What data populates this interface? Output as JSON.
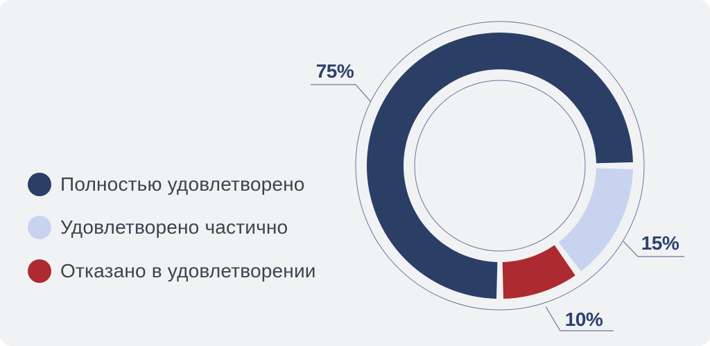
{
  "card": {
    "background": "#f1f2f3"
  },
  "chart_data": {
    "type": "pie",
    "subtype": "donut",
    "title": "",
    "legend_position": "left",
    "start_angle_deg": 180,
    "direction": "clockwise",
    "gap_deg": 3,
    "segments": [
      {
        "label": "Полностью удовлетворено",
        "value": 75,
        "display": "75%",
        "color": "#2b3e66"
      },
      {
        "label": "Удовлетворено частично",
        "value": 15,
        "display": "15%",
        "color": "#c8d4ef"
      },
      {
        "label": "Отказано в удовлетворении",
        "value": 10,
        "display": "10%",
        "color": "#ad2a30"
      }
    ],
    "colors": {
      "guide_lines": "#66759b",
      "percent_labels": "#2d4270",
      "legend_text": "#3d444f"
    }
  }
}
